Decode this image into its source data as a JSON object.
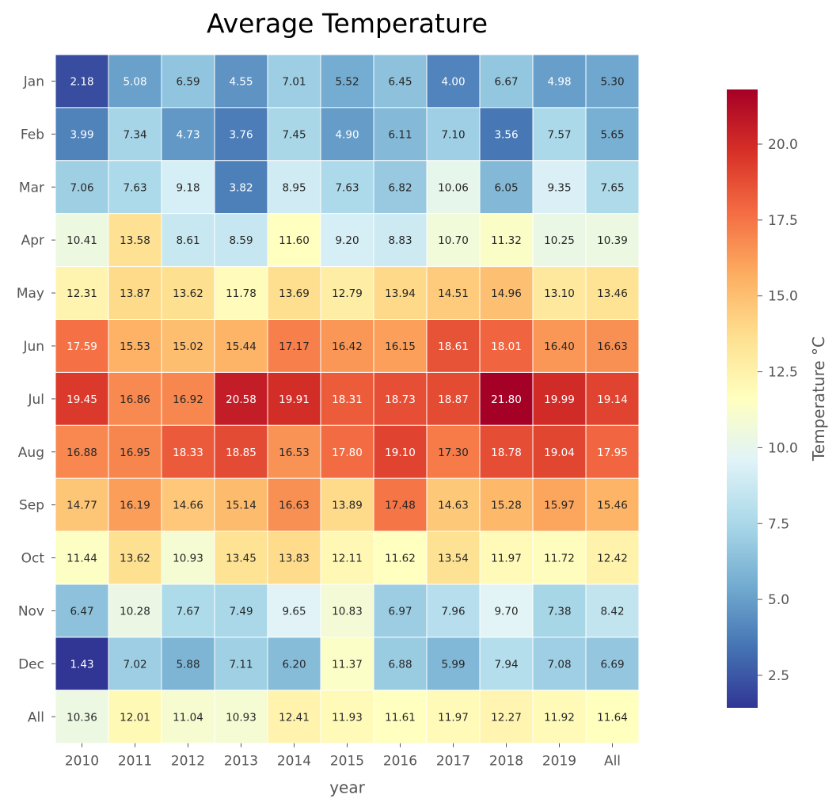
{
  "chart_data": {
    "type": "heatmap",
    "title": "Average Temperature",
    "xlabel": "year",
    "ylabel": "",
    "x_categories": [
      "2010",
      "2011",
      "2012",
      "2013",
      "2014",
      "2015",
      "2016",
      "2017",
      "2018",
      "2019",
      "All"
    ],
    "y_categories": [
      "Jan",
      "Feb",
      "Mar",
      "Apr",
      "May",
      "Jun",
      "Jul",
      "Aug",
      "Sep",
      "Oct",
      "Nov",
      "Dec",
      "All"
    ],
    "values": [
      [
        2.18,
        5.08,
        6.59,
        4.55,
        7.01,
        5.52,
        6.45,
        4.0,
        6.67,
        4.98,
        5.3
      ],
      [
        3.99,
        7.34,
        4.73,
        3.76,
        7.45,
        4.9,
        6.11,
        7.1,
        3.56,
        7.57,
        5.65
      ],
      [
        7.06,
        7.63,
        9.18,
        3.82,
        8.95,
        7.63,
        6.82,
        10.06,
        6.05,
        9.35,
        7.65
      ],
      [
        10.41,
        13.58,
        8.61,
        8.59,
        11.6,
        9.2,
        8.83,
        10.7,
        11.32,
        10.25,
        10.39
      ],
      [
        12.31,
        13.87,
        13.62,
        11.78,
        13.69,
        12.79,
        13.94,
        14.51,
        14.96,
        13.1,
        13.46
      ],
      [
        17.59,
        15.53,
        15.02,
        15.44,
        17.17,
        16.42,
        16.15,
        18.61,
        18.01,
        16.4,
        16.63
      ],
      [
        19.45,
        16.86,
        16.92,
        20.58,
        19.91,
        18.31,
        18.73,
        18.87,
        21.8,
        19.99,
        19.14
      ],
      [
        16.88,
        16.95,
        18.33,
        18.85,
        16.53,
        17.8,
        19.1,
        17.3,
        18.78,
        19.04,
        17.95
      ],
      [
        14.77,
        16.19,
        14.66,
        15.14,
        16.63,
        13.89,
        17.48,
        14.63,
        15.28,
        15.97,
        15.46
      ],
      [
        11.44,
        13.62,
        10.93,
        13.45,
        13.83,
        12.11,
        11.62,
        13.54,
        11.97,
        11.72,
        12.42
      ],
      [
        6.47,
        10.28,
        7.67,
        7.49,
        9.65,
        10.83,
        6.97,
        7.96,
        9.7,
        7.38,
        8.42
      ],
      [
        1.43,
        7.02,
        5.88,
        7.11,
        6.2,
        11.37,
        6.88,
        5.99,
        7.94,
        7.08,
        6.69
      ],
      [
        10.36,
        12.01,
        11.04,
        10.93,
        12.41,
        11.93,
        11.61,
        11.97,
        12.27,
        11.92,
        11.64
      ]
    ],
    "value_format": "2 decimals",
    "colormap": "RdYlBu_r",
    "colorbar": {
      "label": "Temperature °C",
      "range": [
        1.43,
        21.8
      ],
      "ticks": [
        "2.5",
        "5.0",
        "7.5",
        "10.0",
        "12.5",
        "15.0",
        "17.5",
        "20.0"
      ],
      "placement": "right"
    },
    "cell_border_color": "#ffffff",
    "grid": false
  }
}
